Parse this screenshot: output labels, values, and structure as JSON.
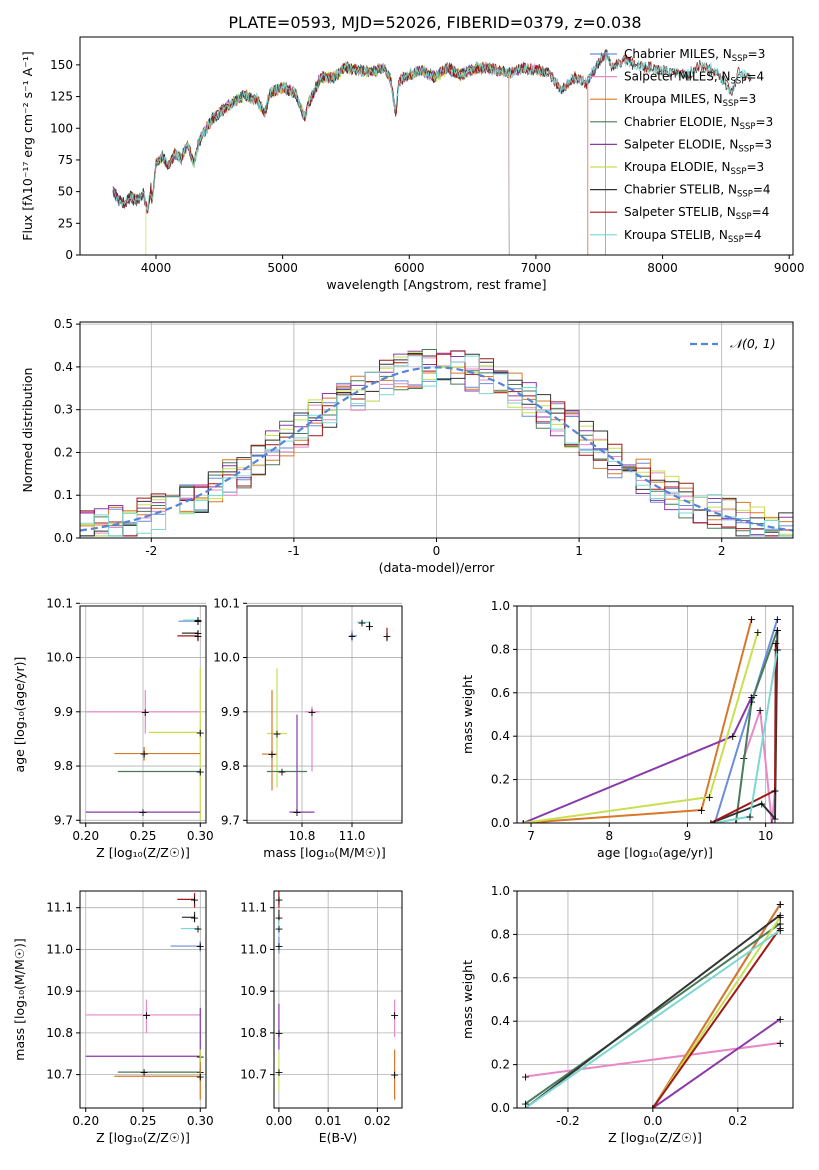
{
  "figure_title": "PLATE=0593, MJD=52026, FIBERID=0379, z=0.038",
  "colors": {
    "chabrier_miles": "#6a8ed8",
    "salpeter_miles": "#e888c8",
    "kroupa_miles": "#d8782a",
    "chabrier_elodie": "#4a7a5a",
    "salpeter_elodie": "#8a3aa8",
    "kroupa_elodie": "#c8e050",
    "chabrier_stelib": "#333333",
    "salpeter_stelib": "#a01818",
    "kroupa_stelib": "#7ad8d0",
    "gaussian": "#5585d8",
    "grid": "#b0b0b0"
  },
  "legend_spectrum": [
    {
      "label": "Chabrier MILES, N",
      "sub": "SSP",
      "eq": "=3",
      "color": "#6a8ed8"
    },
    {
      "label": "Salpeter MILES, N",
      "sub": "SSP",
      "eq": "=4",
      "color": "#e888c8"
    },
    {
      "label": "Kroupa MILES, N",
      "sub": "SSP",
      "eq": "=3",
      "color": "#d8782a"
    },
    {
      "label": "Chabrier ELODIE, N",
      "sub": "SSP",
      "eq": "=3",
      "color": "#4a7a5a"
    },
    {
      "label": "Salpeter ELODIE, N",
      "sub": "SSP",
      "eq": "=3",
      "color": "#8a3aa8"
    },
    {
      "label": "Kroupa ELODIE, N",
      "sub": "SSP",
      "eq": "=3",
      "color": "#c8e050"
    },
    {
      "label": "Chabrier STELIB, N",
      "sub": "SSP",
      "eq": "=4",
      "color": "#333333"
    },
    {
      "label": "Salpeter STELIB, N",
      "sub": "SSP",
      "eq": "=4",
      "color": "#a01818"
    },
    {
      "label": "Kroupa STELIB, N",
      "sub": "SSP",
      "eq": "=4",
      "color": "#7ad8d0"
    }
  ],
  "chart_data": [
    {
      "type": "line",
      "title": "PLATE=0593, MJD=52026, FIBERID=0379, z=0.038",
      "xlabel": "wavelength [Angstrom, rest frame]",
      "ylabel": "Flux [fλ10⁻¹⁷ erg cm⁻² s⁻¹ A⁻¹]",
      "xlim": [
        3400,
        9030
      ],
      "ylim": [
        0,
        172
      ],
      "xticks": [
        4000,
        5000,
        6000,
        7000,
        8000,
        9000
      ],
      "yticks": [
        0,
        25,
        50,
        75,
        100,
        125,
        150
      ],
      "spectrum_knots": [
        [
          3660,
          52
        ],
        [
          3700,
          44
        ],
        [
          3750,
          40
        ],
        [
          3800,
          46
        ],
        [
          3850,
          43
        ],
        [
          3900,
          48
        ],
        [
          3933,
          35
        ],
        [
          3960,
          52
        ],
        [
          3968,
          40
        ],
        [
          4000,
          72
        ],
        [
          4050,
          78
        ],
        [
          4100,
          70
        ],
        [
          4150,
          80
        ],
        [
          4200,
          76
        ],
        [
          4250,
          88
        ],
        [
          4300,
          72
        ],
        [
          4340,
          90
        ],
        [
          4400,
          100
        ],
        [
          4450,
          108
        ],
        [
          4500,
          112
        ],
        [
          4600,
          120
        ],
        [
          4700,
          126
        ],
        [
          4800,
          122
        ],
        [
          4861,
          112
        ],
        [
          4900,
          128
        ],
        [
          5000,
          132
        ],
        [
          5100,
          128
        ],
        [
          5175,
          108
        ],
        [
          5200,
          118
        ],
        [
          5300,
          140
        ],
        [
          5400,
          140
        ],
        [
          5500,
          148
        ],
        [
          5600,
          146
        ],
        [
          5700,
          144
        ],
        [
          5800,
          148
        ],
        [
          5850,
          140
        ],
        [
          5893,
          112
        ],
        [
          5920,
          138
        ],
        [
          6000,
          142
        ],
        [
          6100,
          146
        ],
        [
          6200,
          140
        ],
        [
          6300,
          148
        ],
        [
          6400,
          142
        ],
        [
          6500,
          146
        ],
        [
          6563,
          148
        ],
        [
          6700,
          146
        ],
        [
          6800,
          144
        ],
        [
          6900,
          148
        ],
        [
          7000,
          146
        ],
        [
          7100,
          144
        ],
        [
          7200,
          130
        ],
        [
          7300,
          140
        ],
        [
          7400,
          136
        ],
        [
          7500,
          152
        ],
        [
          7550,
          160
        ],
        [
          7600,
          148
        ],
        [
          7700,
          154
        ],
        [
          7800,
          150
        ],
        [
          7900,
          148
        ],
        [
          8000,
          146
        ],
        [
          8100,
          144
        ],
        [
          8200,
          142
        ],
        [
          8300,
          150
        ],
        [
          8400,
          146
        ],
        [
          8500,
          136
        ],
        [
          8545,
          128
        ],
        [
          8600,
          144
        ],
        [
          8700,
          140
        ]
      ],
      "spectrum_ends": [
        {
          "name": "Chabrier MILES",
          "start": 3660,
          "end": 7550
        },
        {
          "name": "Salpeter MILES",
          "start": 3660,
          "end": 7410
        },
        {
          "name": "Kroupa MILES",
          "start": 3660,
          "end": 7410
        },
        {
          "name": "Chabrier ELODIE",
          "start": 3660,
          "end": 6790
        },
        {
          "name": "Salpeter ELODIE",
          "start": 3660,
          "end": 6790
        },
        {
          "name": "Kroupa ELODIE",
          "start": 3920,
          "end": 6790
        },
        {
          "name": "Chabrier STELIB",
          "start": 3660,
          "end": 8700
        },
        {
          "name": "Salpeter STELIB",
          "start": 3660,
          "end": 8700
        },
        {
          "name": "Kroupa STELIB",
          "start": 3660,
          "end": 8700
        }
      ]
    },
    {
      "type": "histogram",
      "xlabel": "(data-model)/error",
      "ylabel": "Normed distribution",
      "xlim": [
        -2.5,
        2.5
      ],
      "ylim": [
        0,
        0.505
      ],
      "xticks": [
        -2,
        -1,
        0,
        1,
        2
      ],
      "yticks": [
        0.0,
        0.1,
        0.2,
        0.3,
        0.4,
        0.5
      ],
      "bin_width": 0.1,
      "legend": "𝒩(0, 1)",
      "gaussian": {
        "mean": 0,
        "sigma": 1
      }
    },
    {
      "type": "scatter",
      "xlabel": "Z [log10(Z/Z☉)]",
      "ylabel": "age  [log10(age/yr)]",
      "xlim": [
        0.195,
        0.305
      ],
      "ylim": [
        9.695,
        10.095
      ],
      "xticks": [
        0.2,
        0.25,
        0.3
      ],
      "yticks": [
        9.7,
        9.8,
        9.9,
        10.0,
        10.1
      ]
    },
    {
      "type": "scatter",
      "xlabel": "mass [log10(M/M☉)]",
      "xlim": [
        10.58,
        11.2
      ],
      "ylim": [
        9.695,
        10.095
      ],
      "xticks": [
        10.8,
        11.0
      ],
      "yticks": [
        9.7,
        9.8,
        9.9,
        10.0,
        10.1
      ]
    },
    {
      "type": "line",
      "xlabel": "age  [log10(age/yr)]",
      "ylabel": "mass weight",
      "xlim": [
        6.82,
        10.35
      ],
      "ylim": [
        0,
        1
      ],
      "xticks": [
        7,
        8,
        9,
        10
      ],
      "yticks": [
        0.0,
        0.2,
        0.4,
        0.6,
        0.8,
        1.0
      ],
      "series": [
        {
          "name": "Chabrier MILES",
          "x": [
            9.35,
            9.85,
            10.15
          ],
          "y": [
            0.0,
            0.59,
            0.94
          ]
        },
        {
          "name": "Salpeter MILES",
          "x": [
            9.72,
            9.93,
            10.08,
            10.12
          ],
          "y": [
            0.3,
            0.52,
            0.0,
            0.15
          ]
        },
        {
          "name": "Kroupa MILES",
          "x": [
            6.9,
            9.18,
            9.82
          ],
          "y": [
            0.0,
            0.06,
            0.94
          ]
        },
        {
          "name": "Chabrier ELODIE",
          "x": [
            9.62,
            9.82,
            10.15
          ],
          "y": [
            0.0,
            0.56,
            0.89
          ]
        },
        {
          "name": "Salpeter ELODIE",
          "x": [
            6.9,
            9.58,
            9.82
          ],
          "y": [
            0.0,
            0.4,
            0.58
          ]
        },
        {
          "name": "Kroupa ELODIE",
          "x": [
            6.9,
            9.28,
            9.9
          ],
          "y": [
            0.0,
            0.12,
            0.88
          ]
        },
        {
          "name": "Chabrier STELIB",
          "x": [
            9.3,
            9.95,
            10.12,
            10.15
          ],
          "y": [
            0.0,
            0.09,
            0.02,
            0.89
          ]
        },
        {
          "name": "Salpeter STELIB",
          "x": [
            9.3,
            10.12,
            10.13
          ],
          "y": [
            0.0,
            0.15,
            0.83
          ]
        },
        {
          "name": "Kroupa STELIB",
          "x": [
            9.35,
            9.8,
            10.15
          ],
          "y": [
            0.0,
            0.03,
            0.8
          ]
        }
      ]
    },
    {
      "type": "scatter",
      "xlabel": "Z [log10(Z/Z☉)]",
      "ylabel": "mass [log10(M/M☉)]",
      "xlim": [
        0.195,
        0.305
      ],
      "ylim": [
        10.62,
        11.14
      ],
      "xticks": [
        0.2,
        0.25,
        0.3
      ],
      "yticks": [
        10.7,
        10.8,
        10.9,
        11.0,
        11.1
      ]
    },
    {
      "type": "scatter",
      "xlabel": "E(B-V)",
      "xlim": [
        -0.001,
        0.025
      ],
      "ylim": [
        10.62,
        11.14
      ],
      "xticks": [
        0.0,
        0.01,
        0.02
      ],
      "xticklabels": [
        "0.00",
        "0.01",
        "0.02"
      ],
      "yticks": [
        10.7,
        10.8,
        10.9,
        11.0,
        11.1
      ]
    },
    {
      "type": "line",
      "xlabel": "Z [log10(Z/Z☉)]",
      "ylabel": "mass weight",
      "xlim": [
        -0.32,
        0.33
      ],
      "ylim": [
        0,
        1
      ],
      "xticks": [
        -0.2,
        0.0,
        0.2
      ],
      "yticks": [
        0.0,
        0.2,
        0.4,
        0.6,
        0.8,
        1.0
      ],
      "series": [
        {
          "name": "Chabrier MILES",
          "x": [
            0.0,
            0.3
          ],
          "y": [
            0.0,
            0.94
          ]
        },
        {
          "name": "Salpeter MILES",
          "x": [
            -0.3,
            0.3
          ],
          "y": [
            0.145,
            0.3
          ]
        },
        {
          "name": "Kroupa MILES",
          "x": [
            0.0,
            0.3
          ],
          "y": [
            0.0,
            0.94
          ]
        },
        {
          "name": "Chabrier ELODIE",
          "x": [
            -0.3,
            0.3
          ],
          "y": [
            0.02,
            0.85
          ]
        },
        {
          "name": "Salpeter ELODIE",
          "x": [
            0.0,
            0.3
          ],
          "y": [
            0.0,
            0.41
          ]
        },
        {
          "name": "Kroupa ELODIE",
          "x": [
            0.0,
            0.3
          ],
          "y": [
            0.0,
            0.88
          ]
        },
        {
          "name": "Chabrier STELIB",
          "x": [
            -0.3,
            0.3
          ],
          "y": [
            0.0,
            0.89
          ]
        },
        {
          "name": "Salpeter STELIB",
          "x": [
            0.0,
            0.3
          ],
          "y": [
            0.0,
            0.83
          ]
        },
        {
          "name": "Kroupa STELIB",
          "x": [
            -0.3,
            0.3
          ],
          "y": [
            0.0,
            0.82
          ]
        }
      ]
    }
  ]
}
